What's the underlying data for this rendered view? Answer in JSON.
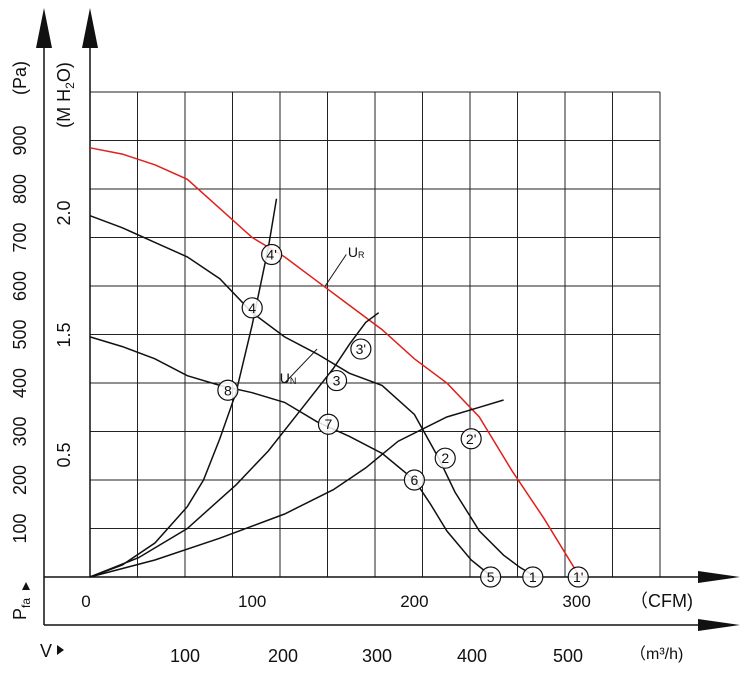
{
  "chart_data": {
    "type": "line",
    "title": "",
    "x_axis_cfm": {
      "label": "（CFM)",
      "ticks": [
        0,
        100,
        200,
        300
      ],
      "range": [
        0,
        300
      ]
    },
    "x_axis_m3h": {
      "label": "（m³/h)",
      "prefix": "V",
      "ticks": [
        100,
        200,
        300,
        400,
        500
      ]
    },
    "y_axis_pa": {
      "label": "(Pa)",
      "ticks": [
        100,
        200,
        300,
        400,
        500,
        600,
        700,
        800,
        900
      ],
      "range": [
        0,
        1000
      ]
    },
    "y_axis_mh2o": {
      "label": "(M H",
      "sub": "2",
      "label_end": "O)",
      "ticks": [
        "0.5",
        "1.5",
        "2.0"
      ]
    },
    "p_label": {
      "text": "P",
      "sub": "fa"
    },
    "series": [
      {
        "name": "UR",
        "name_main": "U",
        "name_sub": "R",
        "color": "#e0201c",
        "points": [
          [
            0,
            885
          ],
          [
            20,
            872
          ],
          [
            40,
            850
          ],
          [
            60,
            820
          ],
          [
            80,
            760
          ],
          [
            100,
            700
          ],
          [
            120,
            660
          ],
          [
            140,
            610
          ],
          [
            160,
            560
          ],
          [
            180,
            510
          ],
          [
            200,
            450
          ],
          [
            220,
            400
          ],
          [
            240,
            330
          ],
          [
            260,
            220
          ],
          [
            280,
            120
          ],
          [
            302,
            0
          ]
        ]
      },
      {
        "name": "UN",
        "name_main": "U",
        "name_sub": "N",
        "color": "#111111",
        "points": [
          [
            0,
            745
          ],
          [
            20,
            720
          ],
          [
            40,
            690
          ],
          [
            60,
            660
          ],
          [
            80,
            615
          ],
          [
            100,
            545
          ],
          [
            120,
            495
          ],
          [
            140,
            460
          ],
          [
            160,
            420
          ],
          [
            180,
            395
          ],
          [
            200,
            335
          ],
          [
            215,
            245
          ],
          [
            225,
            175
          ],
          [
            240,
            95
          ],
          [
            255,
            45
          ],
          [
            265,
            20
          ],
          [
            275,
            0
          ]
        ]
      },
      {
        "name": "",
        "color": "#111111",
        "points": [
          [
            0,
            495
          ],
          [
            20,
            475
          ],
          [
            40,
            450
          ],
          [
            60,
            415
          ],
          [
            80,
            395
          ],
          [
            100,
            380
          ],
          [
            120,
            360
          ],
          [
            140,
            320
          ],
          [
            160,
            290
          ],
          [
            180,
            255
          ],
          [
            200,
            200
          ],
          [
            210,
            150
          ],
          [
            220,
            95
          ],
          [
            235,
            35
          ],
          [
            248,
            0
          ]
        ]
      },
      {
        "name": "",
        "color": "#111111",
        "points": [
          [
            0,
            0
          ],
          [
            20,
            25
          ],
          [
            40,
            70
          ],
          [
            60,
            145
          ],
          [
            70,
            200
          ],
          [
            80,
            285
          ],
          [
            90,
            380
          ],
          [
            100,
            520
          ],
          [
            110,
            680
          ],
          [
            115,
            780
          ]
        ]
      },
      {
        "name": "",
        "color": "#111111",
        "points": [
          [
            0,
            0
          ],
          [
            30,
            40
          ],
          [
            60,
            100
          ],
          [
            90,
            190
          ],
          [
            110,
            260
          ],
          [
            130,
            345
          ],
          [
            150,
            430
          ],
          [
            160,
            480
          ],
          [
            170,
            525
          ],
          [
            178,
            545
          ]
        ]
      },
      {
        "name": "",
        "color": "#111111",
        "points": [
          [
            0,
            0
          ],
          [
            40,
            35
          ],
          [
            80,
            80
          ],
          [
            120,
            130
          ],
          [
            150,
            180
          ],
          [
            170,
            225
          ],
          [
            190,
            280
          ],
          [
            220,
            330
          ],
          [
            240,
            350
          ],
          [
            255,
            365
          ]
        ]
      }
    ],
    "operating_points": [
      {
        "label": "1",
        "x": 273,
        "y": 0
      },
      {
        "label": "1'",
        "x": 301,
        "y": 0
      },
      {
        "label": "2",
        "x": 219,
        "y": 245
      },
      {
        "label": "2'",
        "x": 235,
        "y": 285
      },
      {
        "label": "3",
        "x": 152,
        "y": 405
      },
      {
        "label": "3'",
        "x": 167,
        "y": 470
      },
      {
        "label": "4",
        "x": 100,
        "y": 555
      },
      {
        "label": "4'",
        "x": 112,
        "y": 665
      },
      {
        "label": "5",
        "x": 247,
        "y": 0
      },
      {
        "label": "6",
        "x": 200,
        "y": 200
      },
      {
        "label": "7",
        "x": 147,
        "y": 315
      },
      {
        "label": "8",
        "x": 85,
        "y": 385
      }
    ],
    "grid": true,
    "legend": "inline"
  }
}
